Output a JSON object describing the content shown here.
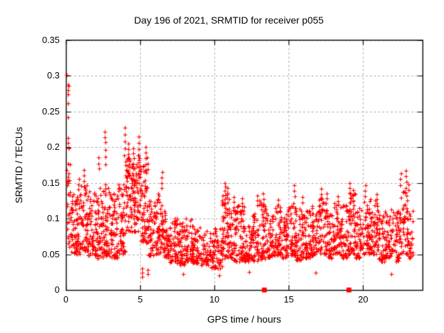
{
  "window": {
    "background": "#ffffff"
  },
  "chart_data": {
    "type": "scatter",
    "title": "Day 196 of 2021, SRMTID for receiver p055",
    "xlabel": "GPS time / hours",
    "ylabel": "SRMTID / TECUs",
    "xlim": [
      0,
      24
    ],
    "ylim": [
      0,
      0.35
    ],
    "xticks": [
      0,
      5,
      10,
      15,
      20
    ],
    "xtick_labels": [
      "0",
      "5",
      "10",
      "15",
      "20"
    ],
    "yticks": [
      0,
      0.05,
      0.1,
      0.15,
      0.2,
      0.25,
      0.3,
      0.35
    ],
    "ytick_labels": [
      "0",
      "0.05",
      "0.1",
      "0.15",
      "0.2",
      "0.25",
      "0.3",
      "0.35"
    ],
    "grid": true,
    "legend_position": "none",
    "colors": {
      "points": "#ff0000",
      "grid": "#aaaaaa",
      "axis": "#000000",
      "text": "#000000",
      "background": "#ffffff"
    },
    "marker": {
      "shape": "plus",
      "size": 7,
      "color": "#ff0000"
    },
    "seed": 196,
    "series": [
      {
        "name": "SRMTID",
        "marker": "plus",
        "color": "#ff0000",
        "binned_distribution": [
          [
            0.05,
            0.3,
            18,
            0.06,
            0.2,
            1.3
          ],
          [
            0.3,
            1.0,
            80,
            0.05,
            0.135,
            1.2
          ],
          [
            1.0,
            1.5,
            60,
            0.055,
            0.148,
            1.4
          ],
          [
            1.5,
            2.0,
            60,
            0.048,
            0.14,
            1.5
          ],
          [
            2.0,
            2.5,
            60,
            0.045,
            0.145,
            1.5
          ],
          [
            2.5,
            3.0,
            60,
            0.045,
            0.148,
            1.5
          ],
          [
            3.0,
            3.5,
            60,
            0.045,
            0.135,
            1.5
          ],
          [
            3.5,
            4.0,
            60,
            0.05,
            0.155,
            1.4
          ],
          [
            4.0,
            4.5,
            65,
            0.075,
            0.185,
            0.9
          ],
          [
            4.5,
            5.0,
            65,
            0.08,
            0.19,
            0.9
          ],
          [
            5.0,
            5.5,
            60,
            0.065,
            0.175,
            1.2
          ],
          [
            5.5,
            6.0,
            55,
            0.048,
            0.125,
            1.4
          ],
          [
            6.0,
            6.5,
            55,
            0.05,
            0.14,
            1.4
          ],
          [
            6.5,
            7.0,
            55,
            0.045,
            0.115,
            1.5
          ],
          [
            7.0,
            7.5,
            50,
            0.038,
            0.1,
            1.5
          ],
          [
            7.5,
            8.0,
            50,
            0.035,
            0.095,
            1.5
          ],
          [
            8.0,
            8.5,
            50,
            0.04,
            0.1,
            1.5
          ],
          [
            8.5,
            9.0,
            48,
            0.038,
            0.092,
            1.5
          ],
          [
            9.0,
            9.5,
            42,
            0.035,
            0.088,
            1.5
          ],
          [
            9.5,
            10.0,
            40,
            0.03,
            0.08,
            1.5
          ],
          [
            10.0,
            10.5,
            42,
            0.03,
            0.088,
            1.5
          ],
          [
            10.5,
            11.0,
            55,
            0.045,
            0.138,
            1.2
          ],
          [
            11.0,
            11.5,
            50,
            0.04,
            0.115,
            1.5
          ],
          [
            11.5,
            12.0,
            50,
            0.04,
            0.12,
            1.5
          ],
          [
            12.0,
            12.5,
            48,
            0.04,
            0.092,
            1.5
          ],
          [
            12.5,
            13.0,
            50,
            0.04,
            0.11,
            1.5
          ],
          [
            13.0,
            13.5,
            50,
            0.042,
            0.125,
            1.5
          ],
          [
            13.5,
            14.0,
            50,
            0.045,
            0.108,
            1.5
          ],
          [
            14.0,
            14.5,
            52,
            0.048,
            0.118,
            1.5
          ],
          [
            14.5,
            15.0,
            50,
            0.045,
            0.112,
            1.5
          ],
          [
            15.0,
            15.5,
            52,
            0.048,
            0.125,
            1.5
          ],
          [
            15.5,
            16.0,
            50,
            0.042,
            0.115,
            1.5
          ],
          [
            16.0,
            16.5,
            50,
            0.045,
            0.112,
            1.5
          ],
          [
            16.5,
            17.0,
            50,
            0.048,
            0.118,
            1.5
          ],
          [
            17.0,
            17.5,
            52,
            0.05,
            0.128,
            1.4
          ],
          [
            17.5,
            18.0,
            50,
            0.045,
            0.115,
            1.5
          ],
          [
            18.0,
            18.5,
            52,
            0.05,
            0.125,
            1.4
          ],
          [
            18.5,
            19.0,
            50,
            0.045,
            0.12,
            1.5
          ],
          [
            19.0,
            19.5,
            55,
            0.05,
            0.135,
            1.3
          ],
          [
            19.5,
            20.0,
            50,
            0.045,
            0.115,
            1.5
          ],
          [
            20.0,
            20.5,
            52,
            0.05,
            0.125,
            1.4
          ],
          [
            20.5,
            21.0,
            52,
            0.05,
            0.128,
            1.4
          ],
          [
            21.0,
            21.5,
            48,
            0.04,
            0.11,
            1.5
          ],
          [
            21.5,
            22.0,
            50,
            0.045,
            0.115,
            1.5
          ],
          [
            22.0,
            22.5,
            48,
            0.04,
            0.112,
            1.5
          ],
          [
            22.5,
            23.0,
            52,
            0.05,
            0.14,
            1.3
          ],
          [
            23.0,
            23.35,
            28,
            0.045,
            0.115,
            1.5
          ]
        ],
        "spike_columns": [
          {
            "x": 0.85,
            "ys": [
              0.155,
              0.148,
              0.141
            ]
          },
          {
            "x": 1.2,
            "ys": [
              0.168,
              0.16,
              0.152,
              0.145
            ]
          },
          {
            "x": 2.2,
            "ys": [
              0.185,
              0.177,
              0.17
            ]
          },
          {
            "x": 2.63,
            "ys": [
              0.221,
              0.214,
              0.207,
              0.196,
              0.186,
              0.176
            ]
          },
          {
            "x": 3.93,
            "ys": [
              0.227,
              0.217,
              0.208,
              0.198,
              0.188
            ]
          },
          {
            "x": 4.22,
            "ys": [
              0.205,
              0.197,
              0.19,
              0.183,
              0.176
            ]
          },
          {
            "x": 4.55,
            "ys": [
              0.198,
              0.191,
              0.184,
              0.177,
              0.17
            ]
          },
          {
            "x": 4.9,
            "ys": [
              0.215,
              0.206,
              0.197,
              0.188,
              0.179
            ]
          },
          {
            "x": 5.15,
            "ys": [
              0.03,
              0.024,
              0.018
            ]
          },
          {
            "x": 5.35,
            "ys": [
              0.2,
              0.192,
              0.184,
              0.176,
              0.168
            ]
          },
          {
            "x": 5.5,
            "ys": [
              0.185,
              0.177,
              0.169,
              0.028,
              0.022
            ]
          },
          {
            "x": 6.45,
            "ys": [
              0.165,
              0.157,
              0.15,
              0.143
            ]
          },
          {
            "x": 7.9,
            "ys": [
              0.022
            ]
          },
          {
            "x": 10.3,
            "ys": [
              0.02
            ]
          },
          {
            "x": 10.7,
            "ys": [
              0.15,
              0.145,
              0.139,
              0.133,
              0.127,
              0.121,
              0.115,
              0.109
            ]
          },
          {
            "x": 10.85,
            "ys": [
              0.143,
              0.136,
              0.129,
              0.122
            ]
          },
          {
            "x": 11.3,
            "ys": [
              0.13,
              0.123,
              0.116
            ]
          },
          {
            "x": 11.85,
            "ys": [
              0.128,
              0.121
            ]
          },
          {
            "x": 12.35,
            "ys": [
              0.025
            ]
          },
          {
            "x": 12.9,
            "ys": [
              0.132,
              0.125,
              0.118
            ]
          },
          {
            "x": 13.3,
            "ys": [
              0.135,
              0.127,
              0.12
            ]
          },
          {
            "x": 14.3,
            "ys": [
              0.126,
              0.119
            ]
          },
          {
            "x": 15.4,
            "ys": [
              0.147,
              0.139,
              0.131
            ]
          },
          {
            "x": 15.9,
            "ys": [
              0.13,
              0.122
            ]
          },
          {
            "x": 16.8,
            "ys": [
              0.024
            ]
          },
          {
            "x": 17.2,
            "ys": [
              0.142,
              0.134,
              0.127
            ]
          },
          {
            "x": 17.55,
            "ys": [
              0.135,
              0.128
            ]
          },
          {
            "x": 18.3,
            "ys": [
              0.131,
              0.124
            ]
          },
          {
            "x": 19.1,
            "ys": [
              0.15,
              0.143,
              0.136,
              0.129,
              0.122
            ]
          },
          {
            "x": 19.35,
            "ys": [
              0.14,
              0.133
            ]
          },
          {
            "x": 20.15,
            "ys": [
              0.147,
              0.139,
              0.131
            ]
          },
          {
            "x": 20.9,
            "ys": [
              0.134,
              0.127
            ]
          },
          {
            "x": 21.9,
            "ys": [
              0.022
            ]
          },
          {
            "x": 22.5,
            "ys": [
              0.163,
              0.155,
              0.147
            ]
          },
          {
            "x": 22.9,
            "ys": [
              0.167,
              0.159,
              0.151,
              0.143
            ]
          },
          {
            "x": 23.1,
            "ys": [
              0.148,
              0.14
            ]
          }
        ],
        "start_column_points": [
          [
            0.07,
            0.301
          ],
          [
            0.13,
            0.287
          ],
          [
            0.17,
            0.285
          ],
          [
            0.14,
            0.28
          ],
          [
            0.15,
            0.274
          ],
          [
            0.14,
            0.261
          ],
          [
            0.16,
            0.242
          ],
          [
            0.12,
            0.213
          ],
          [
            0.16,
            0.206
          ],
          [
            0.13,
            0.177
          ],
          [
            0.18,
            0.163
          ],
          [
            0.13,
            0.158
          ],
          [
            0.15,
            0.152
          ],
          [
            0.12,
            0.134
          ],
          [
            0.1,
            0.12
          ],
          [
            0.14,
            0.105
          ],
          [
            0.17,
            0.095
          ],
          [
            0.11,
            0.085
          ],
          [
            0.13,
            0.075
          ],
          [
            0.16,
            0.065
          ]
        ]
      }
    ],
    "event_markers": {
      "shape": "filled-square",
      "size": 7,
      "color": "#ff0000",
      "points": [
        [
          13.37,
          0
        ],
        [
          19.06,
          0
        ]
      ]
    }
  }
}
